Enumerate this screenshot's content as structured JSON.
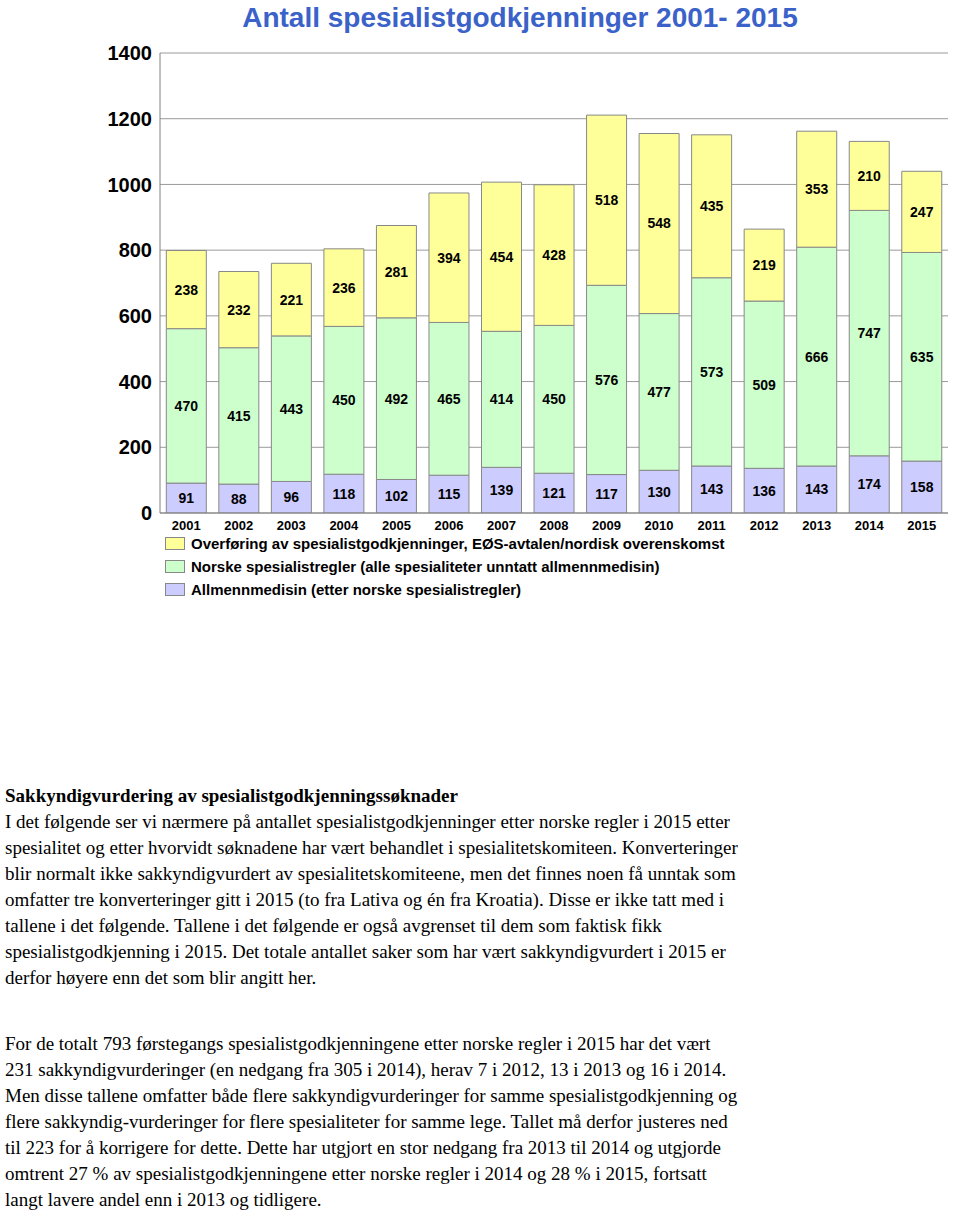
{
  "chart_data": {
    "type": "bar",
    "title": "Antall spesialistgodkjenninger 2001- 2015",
    "categories": [
      "2001",
      "2002",
      "2003",
      "2004",
      "2005",
      "2006",
      "2007",
      "2008",
      "2009",
      "2010",
      "2011",
      "2012",
      "2013",
      "2014",
      "2015"
    ],
    "series": [
      {
        "name": "Allmennmedisin (etter norske spesialistregler)",
        "color": "#ccccff",
        "values": [
          91,
          88,
          96,
          118,
          102,
          115,
          139,
          121,
          117,
          130,
          143,
          136,
          143,
          174,
          158
        ]
      },
      {
        "name": "Norske spesialistregler (alle spesialiteter unntatt allmennmedisin)",
        "color": "#ccffcc",
        "values": [
          470,
          415,
          443,
          450,
          492,
          465,
          414,
          450,
          576,
          477,
          573,
          509,
          666,
          747,
          635
        ]
      },
      {
        "name": "Overføring av spesialistgodkjenninger, EØS-avtalen/nordisk overenskomst",
        "color": "#ffff99",
        "values": [
          238,
          232,
          221,
          236,
          281,
          394,
          454,
          428,
          518,
          548,
          435,
          219,
          353,
          210,
          247
        ]
      }
    ],
    "ylim": [
      0,
      1400
    ],
    "yticks": [
      0,
      200,
      400,
      600,
      800,
      1000,
      1200,
      1400
    ],
    "stacked": true,
    "grid": true,
    "data_labels": true,
    "legend": "bottom"
  },
  "document": {
    "heading": "Sakkyndigvurdering av spesialistgodkjenningssøknader",
    "paragraphs": [
      [
        "I det følgende ser vi nærmere på antallet spesialistgodkjenninger etter norske regler i 2015 etter",
        "spesialitet og etter hvorvidt søknadene har vært behandlet i spesialitetskomiteen. Konverteringer",
        "blir normalt ikke sakkyndigvurdert av spesialitetskomiteene, men det finnes noen få unntak som",
        "omfatter tre konverteringer gitt i 2015 (to fra Lativa og én fra Kroatia). Disse er ikke tatt med i",
        "tallene i det følgende. Tallene i det følgende er også avgrenset til dem som faktisk fikk",
        "spesialistgodkjenning i 2015. Det totale antallet saker som har vært sakkyndigvurdert i 2015 er",
        "derfor høyere enn det som blir angitt her."
      ],
      [
        "For de totalt 793 førstegangs spesialistgodkjenningene etter norske regler i 2015 har det vært",
        "231 sakkyndigvurderinger (en nedgang fra 305 i 2014), herav 7 i 2012, 13 i 2013 og 16 i 2014.",
        "Men disse tallene omfatter både flere sakkyndigvurderinger for samme spesialistgodkjenning og",
        "flere sakkyndig-vurderinger for flere spesialiteter for samme lege. Tallet må derfor justeres ned",
        "til 223 for å korrigere for dette. Dette har utgjort en stor nedgang fra 2013 til 2014 og utgjorde",
        "omtrent 27 % av spesialistgodkjenningene etter norske regler i 2014 og 28 % i 2015, fortsatt",
        "langt lavere andel enn i 2013 og tidligere."
      ]
    ]
  }
}
